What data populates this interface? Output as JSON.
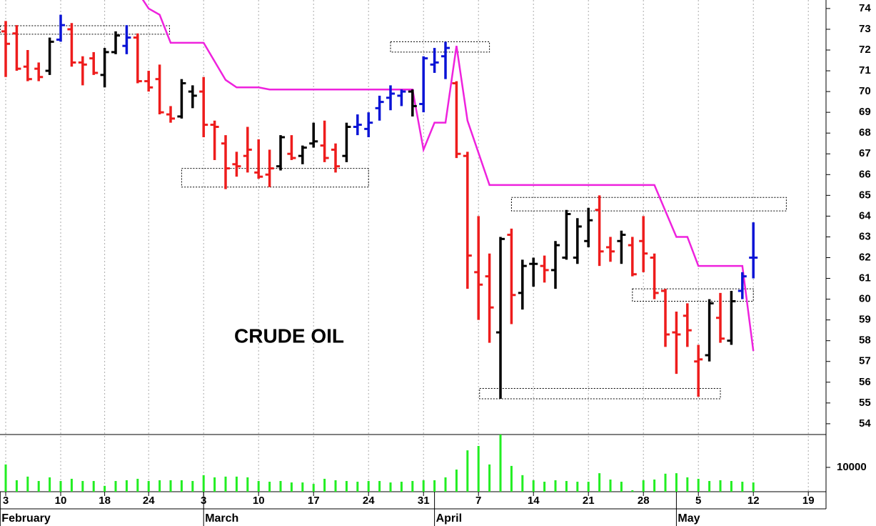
{
  "chart_data": {
    "type": "ohlc",
    "annotation": "CRUDE OIL",
    "xlim": [
      -0.52,
      74.61
    ],
    "xticks": [
      {
        "value": 0,
        "label": "3"
      },
      {
        "value": 5,
        "label": "10"
      },
      {
        "value": 9,
        "label": "18"
      },
      {
        "value": 13,
        "label": "24"
      },
      {
        "value": 18,
        "label": "3"
      },
      {
        "value": 23,
        "label": "10"
      },
      {
        "value": 28,
        "label": "17"
      },
      {
        "value": 33,
        "label": "24"
      },
      {
        "value": 38,
        "label": "31"
      },
      {
        "value": 43,
        "label": "7"
      },
      {
        "value": 48,
        "label": "14"
      },
      {
        "value": 53,
        "label": "21"
      },
      {
        "value": 58,
        "label": "28"
      },
      {
        "value": 63,
        "label": "5"
      },
      {
        "value": 68,
        "label": "12"
      },
      {
        "value": 73,
        "label": "19"
      }
    ],
    "months": [
      {
        "value": -0.5,
        "label": "February"
      },
      {
        "value": 18,
        "label": "March"
      },
      {
        "value": 39,
        "label": "April"
      },
      {
        "value": 61,
        "label": "May"
      }
    ],
    "ylim": [
      53.48,
      74.41
    ],
    "yticks": [
      54,
      55,
      56,
      57,
      58,
      59,
      60,
      61,
      62,
      63,
      64,
      65,
      66,
      67,
      68,
      69,
      70,
      71,
      72,
      73,
      74
    ],
    "y2lim": [
      0,
      23500
    ],
    "y2ticks": [
      10000
    ],
    "palette": {
      "red": "#ee1c1c",
      "black": "#000000",
      "blue": "#0a14d6"
    },
    "bar_colors": [
      "red",
      "red",
      "red",
      "red",
      "black",
      "blue",
      "red",
      "red",
      "red",
      "black",
      "black",
      "blue",
      "red",
      "red",
      "red",
      "red",
      "black",
      "black",
      "red",
      "red",
      "red",
      "red",
      "red",
      "red",
      "red",
      "black",
      "red",
      "black",
      "black",
      "red",
      "red",
      "black",
      "blue",
      "blue",
      "blue",
      "blue",
      "blue",
      "black",
      "blue",
      "blue",
      "blue",
      "red",
      "red",
      "red",
      "red",
      "black",
      "red",
      "black",
      "black",
      "red",
      "black",
      "black",
      "black",
      "black",
      "red",
      "red",
      "black",
      "red",
      "red",
      "red",
      "red",
      "red",
      "red",
      "red",
      "black",
      "red",
      "black",
      "blue",
      "blue"
    ],
    "open": [
      72.9,
      72.8,
      71.2,
      71.1,
      71.0,
      72.5,
      73.0,
      71.4,
      71.6,
      70.8,
      71.9,
      72.2,
      72.6,
      70.5,
      70.6,
      68.9,
      68.8,
      70.0,
      70.0,
      68.4,
      67.5,
      66.5,
      66.9,
      66.1,
      66.0,
      66.4,
      67.0,
      66.9,
      67.5,
      67.4,
      67.2,
      66.9,
      68.3,
      68.2,
      69.2,
      69.7,
      69.8,
      70.0,
      69.4,
      71.3,
      71.7,
      70.4,
      66.9,
      61.3,
      61.1,
      58.4,
      63.1,
      60.3,
      61.7,
      61.6,
      61.4,
      62.0,
      62.0,
      62.8,
      64.3,
      62.5,
      62.8,
      62.6,
      62.8,
      62.0,
      60.4,
      58.4,
      59.2,
      57.0,
      57.3,
      59.1,
      58.0,
      60.4,
      62.0
    ],
    "high": [
      73.4,
      73.2,
      72.0,
      71.4,
      72.6,
      73.7,
      73.3,
      71.7,
      71.9,
      72.1,
      72.9,
      73.2,
      72.8,
      71.0,
      71.3,
      69.3,
      70.6,
      70.3,
      70.7,
      68.6,
      67.9,
      67.1,
      68.3,
      67.7,
      67.2,
      67.9,
      67.9,
      67.4,
      68.5,
      68.6,
      67.5,
      68.5,
      68.9,
      69.0,
      69.8,
      70.3,
      70.1,
      70.1,
      71.7,
      72.1,
      72.4,
      70.5,
      67.1,
      64.0,
      62.2,
      63.0,
      63.4,
      61.9,
      62.0,
      62.1,
      62.8,
      64.3,
      63.9,
      64.4,
      65.0,
      63.0,
      63.3,
      63.0,
      64.0,
      62.2,
      60.5,
      59.4,
      59.8,
      57.8,
      60.0,
      60.3,
      60.4,
      61.3,
      63.7
    ],
    "low": [
      70.7,
      71.0,
      70.5,
      70.5,
      70.8,
      72.4,
      71.2,
      70.3,
      70.8,
      70.2,
      71.8,
      71.8,
      70.4,
      70.0,
      68.9,
      68.5,
      68.7,
      69.2,
      67.8,
      66.7,
      65.3,
      65.9,
      66.1,
      65.8,
      65.4,
      66.2,
      66.7,
      66.5,
      67.3,
      66.6,
      66.1,
      66.6,
      67.9,
      67.8,
      68.6,
      69.1,
      69.3,
      68.8,
      69.0,
      70.9,
      70.6,
      66.8,
      60.5,
      59.0,
      57.9,
      55.2,
      58.8,
      59.5,
      60.6,
      60.8,
      60.5,
      61.9,
      61.7,
      62.5,
      61.6,
      61.8,
      61.7,
      61.1,
      61.3,
      60.0,
      57.7,
      56.4,
      57.7,
      55.3,
      57.0,
      57.9,
      57.8,
      60.0,
      61.0
    ],
    "close": [
      72.3,
      71.1,
      70.6,
      70.7,
      72.4,
      73.2,
      71.4,
      71.3,
      70.9,
      71.9,
      72.7,
      72.6,
      70.5,
      70.2,
      69.0,
      68.7,
      70.4,
      69.8,
      68.4,
      68.3,
      66.3,
      66.4,
      67.2,
      65.9,
      66.3,
      67.8,
      66.8,
      67.3,
      67.6,
      66.8,
      66.4,
      68.3,
      68.4,
      68.5,
      69.5,
      69.9,
      70.0,
      69.3,
      71.6,
      71.4,
      72.1,
      67.0,
      62.1,
      60.7,
      59.6,
      62.9,
      60.2,
      61.6,
      61.7,
      61.4,
      62.6,
      64.1,
      63.5,
      63.8,
      62.3,
      62.3,
      63.1,
      61.2,
      62.2,
      60.3,
      58.3,
      58.3,
      58.5,
      57.1,
      59.8,
      58.1,
      59.9,
      61.1,
      62.0
    ],
    "volume": {
      "axis": "y2",
      "color": "#22ee22",
      "values": [
        11200,
        4700,
        6200,
        4400,
        5900,
        4400,
        5300,
        4400,
        4400,
        2400,
        4400,
        4700,
        5300,
        4400,
        4700,
        4700,
        4700,
        4400,
        6800,
        5900,
        6200,
        6200,
        5900,
        4400,
        4100,
        4400,
        3800,
        3800,
        3200,
        5300,
        4700,
        4400,
        4100,
        4400,
        4400,
        3800,
        4100,
        4400,
        4700,
        4700,
        5900,
        9100,
        17000,
        18800,
        11200,
        23500,
        10600,
        6800,
        4700,
        4100,
        4700,
        4400,
        4100,
        4100,
        7600,
        5000,
        4100,
        600,
        4700,
        5000,
        7400,
        7600,
        5900,
        5300,
        4400,
        4700,
        4400,
        4100,
        3800
      ]
    },
    "stop_line": {
      "color": "#ee22dd",
      "x": [
        12,
        13,
        14,
        15,
        18,
        20,
        21,
        23,
        24,
        37,
        38,
        39,
        40,
        41,
        42,
        44,
        59,
        61,
        62,
        63,
        67,
        68
      ],
      "values": [
        74.8,
        74.0,
        73.7,
        72.35,
        72.35,
        70.56,
        70.2,
        70.2,
        70.1,
        70.1,
        67.2,
        68.5,
        68.5,
        72.2,
        68.6,
        65.5,
        65.5,
        63.0,
        63.0,
        61.6,
        61.6,
        57.5
      ]
    },
    "zones": [
      {
        "from": -0.5,
        "to": 14.9,
        "low": 72.76,
        "high": 73.17
      },
      {
        "from": 16,
        "to": 33,
        "low": 65.4,
        "high": 66.3
      },
      {
        "from": 35,
        "to": 44,
        "low": 71.9,
        "high": 72.4
      },
      {
        "from": 46,
        "to": 71,
        "low": 64.25,
        "high": 64.9
      },
      {
        "from": 57,
        "to": 68,
        "low": 59.9,
        "high": 60.5
      },
      {
        "from": 43.1,
        "to": 65,
        "low": 55.2,
        "high": 55.7
      }
    ]
  }
}
